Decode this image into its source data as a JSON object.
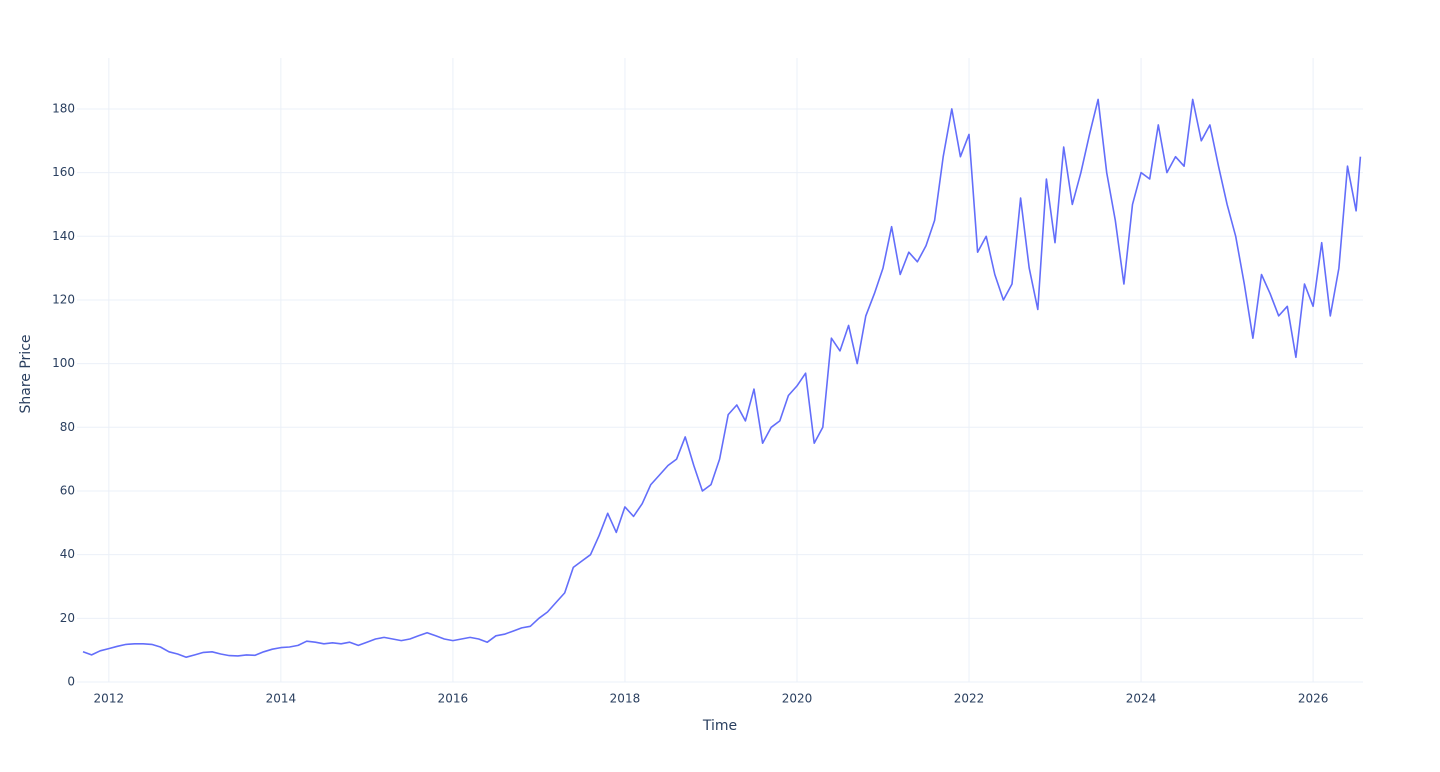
{
  "chart_data": {
    "type": "line",
    "xlabel": "Time",
    "ylabel": "Share Price",
    "x": [
      2011.7,
      2011.8,
      2011.9,
      2012.0,
      2012.1,
      2012.2,
      2012.3,
      2012.4,
      2012.5,
      2012.6,
      2012.7,
      2012.8,
      2012.9,
      2013.0,
      2013.1,
      2013.2,
      2013.3,
      2013.4,
      2013.5,
      2013.6,
      2013.7,
      2013.8,
      2013.9,
      2014.0,
      2014.1,
      2014.2,
      2014.3,
      2014.4,
      2014.5,
      2014.6,
      2014.7,
      2014.8,
      2014.9,
      2015.0,
      2015.1,
      2015.2,
      2015.3,
      2015.4,
      2015.5,
      2015.6,
      2015.7,
      2015.8,
      2015.9,
      2016.0,
      2016.1,
      2016.2,
      2016.3,
      2016.4,
      2016.5,
      2016.6,
      2016.7,
      2016.8,
      2016.9,
      2017.0,
      2017.1,
      2017.2,
      2017.3,
      2017.4,
      2017.5,
      2017.6,
      2017.7,
      2017.8,
      2017.9,
      2018.0,
      2018.1,
      2018.2,
      2018.3,
      2018.4,
      2018.5,
      2018.6,
      2018.7,
      2018.8,
      2018.9,
      2019.0,
      2019.1,
      2019.2,
      2019.3,
      2019.4,
      2019.5,
      2019.6,
      2019.7,
      2019.8,
      2019.9,
      2020.0,
      2020.1,
      2020.2,
      2020.3,
      2020.4,
      2020.5,
      2020.6,
      2020.7,
      2020.8,
      2020.9,
      2021.0,
      2021.1,
      2021.2,
      2021.3,
      2021.4,
      2021.5,
      2021.6,
      2021.7,
      2021.8,
      2021.9,
      2022.0,
      2022.1,
      2022.2,
      2022.3,
      2022.4,
      2022.5,
      2022.6,
      2022.7,
      2022.8,
      2022.9,
      2023.0,
      2023.1,
      2023.2,
      2023.3,
      2023.4,
      2023.5,
      2023.6,
      2023.7,
      2023.8,
      2023.9,
      2024.0,
      2024.1,
      2024.2,
      2024.3,
      2024.4,
      2024.5,
      2024.6,
      2024.7,
      2024.8,
      2024.9,
      2025.0,
      2025.1,
      2025.2,
      2025.3,
      2025.4,
      2025.5,
      2025.6,
      2025.7,
      2025.8,
      2025.9,
      2026.0,
      2026.1,
      2026.2,
      2026.3,
      2026.4,
      2026.5,
      2026.55
    ],
    "series": [
      {
        "name": "Share Price",
        "color": "#636efa",
        "values": [
          9.5,
          8.5,
          9.8,
          10.5,
          11.2,
          11.8,
          12,
          12,
          11.8,
          11,
          9.5,
          8.8,
          7.8,
          8.5,
          9.3,
          9.5,
          8.8,
          8.3,
          8.2,
          8.5,
          8.4,
          9.5,
          10.3,
          10.8,
          11,
          11.5,
          12.8,
          12.5,
          12,
          12.3,
          12,
          12.5,
          11.5,
          12.5,
          13.5,
          14,
          13.5,
          13,
          13.5,
          14.5,
          15.5,
          14.5,
          13.5,
          13,
          13.5,
          14,
          13.5,
          12.5,
          14.5,
          15,
          16,
          17,
          17.5,
          20,
          22,
          25,
          28,
          36,
          38,
          40,
          46,
          53,
          47,
          55,
          52,
          56,
          62,
          65,
          68,
          70,
          77,
          68,
          60,
          62,
          70,
          84,
          87,
          82,
          92,
          75,
          80,
          82,
          90,
          93,
          97,
          75,
          80,
          108,
          104,
          112,
          100,
          115,
          122,
          130,
          143,
          128,
          135,
          132,
          137,
          145,
          165,
          180,
          165,
          172,
          135,
          140,
          128,
          120,
          125,
          152,
          130,
          117,
          158,
          138,
          168,
          150,
          160,
          172,
          183,
          160,
          145,
          125,
          150,
          160,
          158,
          175,
          160,
          165,
          162,
          183,
          170,
          175,
          162,
          150,
          140,
          125,
          108,
          128,
          122,
          115,
          118,
          102,
          125,
          118,
          138,
          115,
          130,
          162,
          148,
          165
        ]
      }
    ],
    "xlim": [
      2011.63,
      2026.58
    ],
    "xticks": [
      2012,
      2014,
      2016,
      2018,
      2020,
      2022,
      2024,
      2026
    ],
    "ylim": [
      0,
      196
    ],
    "yticks": [
      0,
      20,
      40,
      60,
      80,
      100,
      120,
      140,
      160,
      180
    ],
    "grid": true
  }
}
